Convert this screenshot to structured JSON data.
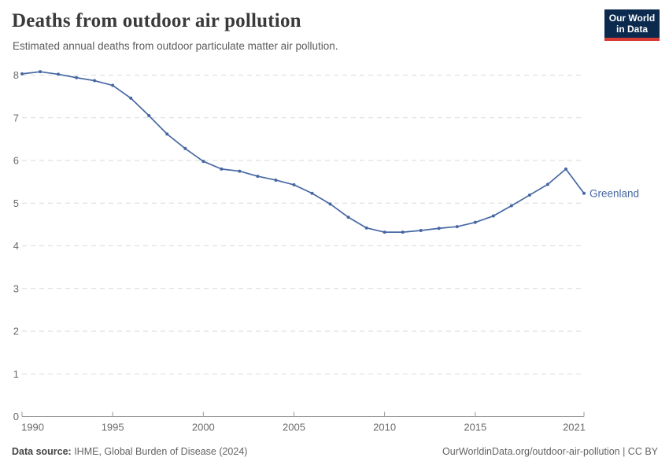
{
  "header": {
    "title": "Deaths from outdoor air pollution",
    "subtitle": "Estimated annual deaths from outdoor particulate matter air pollution.",
    "logo": {
      "line1": "Our World",
      "line2": "in Data"
    }
  },
  "chart_data": {
    "type": "line",
    "title": "Deaths from outdoor air pollution",
    "xlabel": "",
    "ylabel": "",
    "x": [
      1990,
      1991,
      1992,
      1993,
      1994,
      1995,
      1996,
      1997,
      1998,
      1999,
      2000,
      2001,
      2002,
      2003,
      2004,
      2005,
      2006,
      2007,
      2008,
      2009,
      2010,
      2011,
      2012,
      2013,
      2014,
      2015,
      2016,
      2017,
      2018,
      2019,
      2020,
      2021
    ],
    "series": [
      {
        "name": "Greenland",
        "color": "#4667a3",
        "values": [
          8.03,
          8.08,
          8.02,
          7.94,
          7.87,
          7.76,
          7.46,
          7.05,
          6.62,
          6.28,
          5.98,
          5.8,
          5.75,
          5.63,
          5.54,
          5.43,
          5.23,
          4.98,
          4.67,
          4.42,
          4.32,
          4.32,
          4.36,
          4.41,
          4.45,
          4.55,
          4.7,
          4.94,
          5.19,
          5.44,
          5.8,
          5.23
        ]
      }
    ],
    "xticks": [
      1990,
      1995,
      2000,
      2005,
      2010,
      2015,
      2021
    ],
    "yticks": [
      0,
      1,
      2,
      3,
      4,
      5,
      6,
      7,
      8
    ],
    "xlim": [
      1990,
      2021
    ],
    "ylim": [
      0,
      8.3
    ],
    "grid": "horizontal-dashed",
    "legend": "end-of-line-label"
  },
  "footer": {
    "source_label": "Data source:",
    "source_text": " IHME, Global Burden of Disease (2024)",
    "credit": "OurWorldinData.org/outdoor-air-pollution | CC BY"
  },
  "colors": {
    "line": "#4667a3",
    "grid": "#dadada",
    "axis": "#999999",
    "axis_text": "#6b6b6b",
    "logo_bg": "#0b2a4e",
    "logo_accent": "#d93a34"
  }
}
